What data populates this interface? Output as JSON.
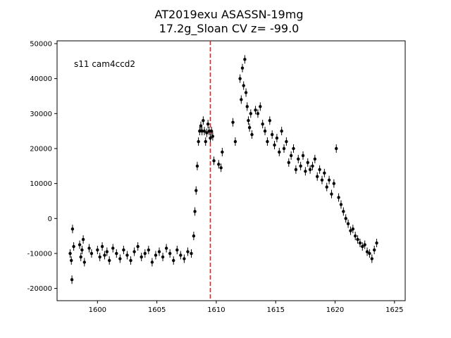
{
  "chart_data": {
    "type": "scatter",
    "title_line1": "AT2019exu  ASASSN-19mg",
    "title_line2": "17.2g_Sloan CV z= -99.0",
    "annotation": "s11 cam4ccd2",
    "xlabel": "",
    "ylabel": "",
    "xlim": [
      1596.6,
      1625.9
    ],
    "ylim": [
      -23500,
      50800
    ],
    "xticks": [
      1600,
      1605,
      1610,
      1615,
      1620,
      1625
    ],
    "yticks": [
      -20000,
      -10000,
      0,
      10000,
      20000,
      30000,
      40000,
      50000
    ],
    "grid": false,
    "marker_color": "#000000",
    "vline": {
      "x": 1609.5,
      "color": "#d62728",
      "style": "dashed"
    },
    "series": [
      {
        "x": [
          1597.7,
          1597.8,
          1597.85,
          1597.9,
          1598.0,
          1598.5,
          1598.6,
          1598.7,
          1598.8,
          1598.9,
          1599.3,
          1599.5,
          1600.0,
          1600.2,
          1600.4,
          1600.6,
          1600.8,
          1601.0,
          1601.3,
          1601.6,
          1601.9,
          1602.2,
          1602.5,
          1602.8,
          1603.1,
          1603.4,
          1603.7,
          1604.0,
          1604.3,
          1604.6,
          1604.9,
          1605.2,
          1605.5,
          1605.8,
          1606.1,
          1606.4,
          1606.7,
          1607.0,
          1607.3,
          1607.6,
          1607.9,
          1608.1,
          1608.2,
          1608.3,
          1608.4,
          1608.5,
          1608.6,
          1608.7,
          1608.8,
          1608.9,
          1609.0,
          1609.1,
          1609.2,
          1609.3,
          1609.4,
          1609.5,
          1609.6,
          1609.7,
          1609.8,
          1610.2,
          1610.4,
          1610.5,
          1611.4,
          1611.6,
          1612.0,
          1612.1,
          1612.2,
          1612.3,
          1612.4,
          1612.5,
          1612.6,
          1612.7,
          1612.8,
          1612.9,
          1613.0,
          1613.3,
          1613.5,
          1613.7,
          1613.9,
          1614.1,
          1614.3,
          1614.5,
          1614.7,
          1614.9,
          1615.1,
          1615.3,
          1615.5,
          1615.7,
          1615.9,
          1616.1,
          1616.3,
          1616.5,
          1616.7,
          1616.9,
          1617.1,
          1617.3,
          1617.5,
          1617.7,
          1617.9,
          1618.1,
          1618.3,
          1618.5,
          1618.7,
          1618.9,
          1619.1,
          1619.3,
          1619.5,
          1619.7,
          1619.9,
          1620.1,
          1620.3,
          1620.5,
          1620.7,
          1620.9,
          1621.1,
          1621.3,
          1621.5,
          1621.7,
          1621.9,
          1622.1,
          1622.3,
          1622.5,
          1622.7,
          1622.9,
          1623.1,
          1623.3,
          1623.5
        ],
        "y": [
          -10000,
          -12000,
          -17500,
          -3000,
          -8000,
          -7500,
          -11000,
          -9000,
          -6000,
          -12500,
          -8500,
          -10000,
          -9000,
          -11000,
          -8000,
          -10500,
          -9500,
          -12000,
          -8500,
          -10000,
          -11500,
          -9000,
          -10500,
          -12000,
          -9500,
          -8000,
          -11000,
          -10000,
          -9000,
          -12500,
          -10500,
          -9500,
          -11000,
          -8500,
          -10000,
          -12000,
          -9000,
          -10500,
          -11500,
          -9500,
          -10000,
          -5000,
          2000,
          8000,
          15000,
          22000,
          25000,
          26500,
          25000,
          28000,
          25000,
          22000,
          24500,
          27000,
          25000,
          23000,
          25000,
          23500,
          16500,
          15500,
          14500,
          19000,
          27500,
          22000,
          40000,
          34000,
          43000,
          38000,
          45500,
          36000,
          32000,
          28000,
          26000,
          30000,
          24000,
          31000,
          30000,
          32000,
          27000,
          25000,
          22000,
          28000,
          24000,
          21000,
          23000,
          19000,
          25000,
          20000,
          22000,
          16000,
          18000,
          20000,
          14000,
          17000,
          15000,
          18000,
          13500,
          16000,
          14000,
          15000,
          17000,
          12000,
          14000,
          11000,
          13000,
          9000,
          11000,
          7000,
          10000,
          20000,
          6000,
          4000,
          2000,
          0,
          -1500,
          -3500,
          -3000,
          -5000,
          -6000,
          -7000,
          -8000,
          -7500,
          -9500,
          -10000,
          -11500,
          -9000,
          -7000
        ]
      }
    ]
  }
}
